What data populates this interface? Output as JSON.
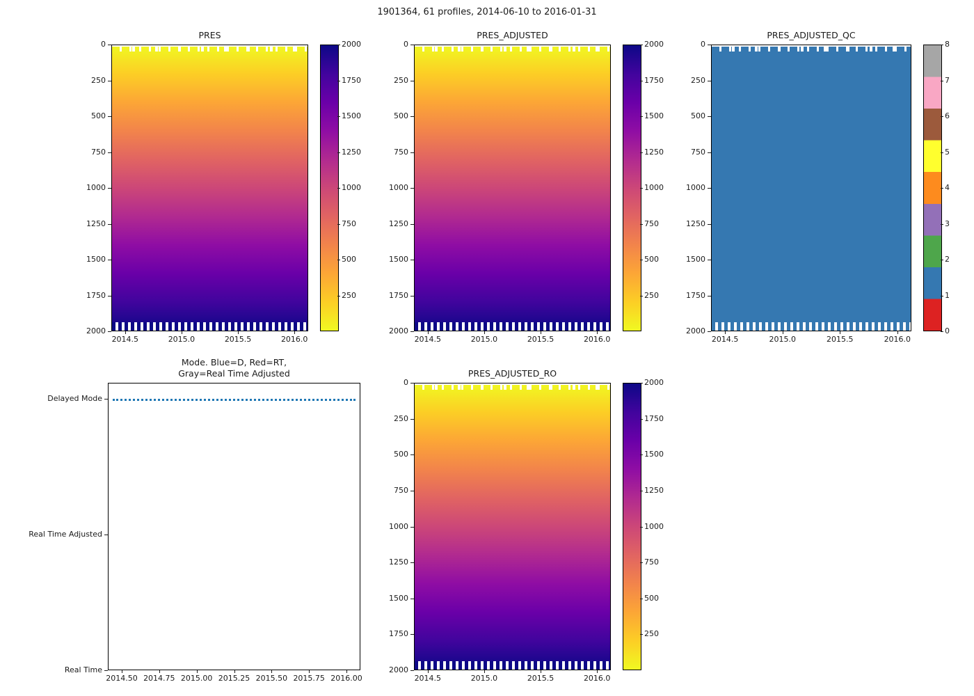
{
  "figure": {
    "title": "1901364, 61 profiles, 2014-06-10 to 2016-01-31",
    "background": "#ffffff"
  },
  "colors": {
    "plasma_colormap_stops": [
      "#0d0887",
      "#41049d",
      "#6a00a8",
      "#8f0da4",
      "#b12a90",
      "#cc4778",
      "#e16462",
      "#f2844b",
      "#fca636",
      "#fcce25",
      "#f0f921"
    ],
    "qc_flag_colors": {
      "0": "#dd2222",
      "1": "#3578b1",
      "2": "#4ea64b",
      "3": "#9370b8",
      "4": "#fd8b1e",
      "5": "#ffff2e",
      "6": "#9c5a3c",
      "7": "#f9a7c4",
      "8": "#a6a6a6"
    },
    "delayed_mode_line": "#1f77b4",
    "deep_field": "#0d0887"
  },
  "charts": {
    "pres": {
      "title": "PRES",
      "yticks": [
        "0",
        "250",
        "500",
        "750",
        "1000",
        "1250",
        "1500",
        "1750",
        "2000"
      ],
      "xticks": [
        "2014.5",
        "2015.0",
        "2015.5",
        "2016.0"
      ],
      "colorbar_ticks": [
        "2000",
        "1750",
        "1500",
        "1250",
        "1000",
        "750",
        "500",
        "250"
      ]
    },
    "pres_adjusted": {
      "title": "PRES_ADJUSTED",
      "yticks": [
        "0",
        "250",
        "500",
        "750",
        "1000",
        "1250",
        "1500",
        "1750",
        "2000"
      ],
      "xticks": [
        "2014.5",
        "2015.0",
        "2015.5",
        "2016.0"
      ],
      "colorbar_ticks": [
        "2000",
        "1750",
        "1500",
        "1250",
        "1000",
        "750",
        "500",
        "250"
      ]
    },
    "pres_adjusted_qc": {
      "title": "PRES_ADJUSTED_QC",
      "yticks": [
        "0",
        "250",
        "500",
        "750",
        "1000",
        "1250",
        "1500",
        "1750",
        "2000"
      ],
      "xticks": [
        "2014.5",
        "2015.0",
        "2015.5",
        "2016.0"
      ],
      "colorbar_ticks": [
        "8",
        "7",
        "6",
        "5",
        "4",
        "3",
        "2",
        "1",
        "0"
      ]
    },
    "mode": {
      "title_line1": "Mode. Blue=D, Red=RT,",
      "title_line2": "Gray=Real Time Adjusted",
      "ycats": [
        "Delayed Mode",
        "Real Time Adjusted",
        "Real Time"
      ],
      "xticks": [
        "2014.50",
        "2014.75",
        "2015.00",
        "2015.25",
        "2015.50",
        "2015.75",
        "2016.00"
      ]
    },
    "pres_adjusted_ro": {
      "title": "PRES_ADJUSTED_RO",
      "yticks": [
        "0",
        "250",
        "500",
        "750",
        "1000",
        "1250",
        "1500",
        "1750",
        "2000"
      ],
      "xticks": [
        "2014.5",
        "2015.0",
        "2015.5",
        "2016.0"
      ],
      "colorbar_ticks": [
        "2000",
        "1750",
        "1500",
        "1250",
        "1000",
        "750",
        "500",
        "250"
      ]
    }
  },
  "chart_data": [
    {
      "type": "heatmap",
      "title": "PRES",
      "x": {
        "range": [
          2014.37,
          2016.12
        ],
        "ticks": [
          2014.5,
          2015.0,
          2015.5,
          2016.0
        ]
      },
      "y": {
        "range": [
          0,
          2000
        ],
        "inverted": true,
        "ticks": [
          0,
          250,
          500,
          750,
          1000,
          1250,
          1500,
          1750,
          2000
        ]
      },
      "value": {
        "min": 0,
        "max": 2000,
        "colormap": "plasma",
        "colorbar_ticks": [
          250,
          500,
          750,
          1000,
          1250,
          1500,
          1750,
          2000
        ]
      },
      "representative_profile": {
        "depth": [
          0,
          250,
          500,
          750,
          1000,
          1250,
          1500,
          1750,
          2000
        ],
        "value": [
          0,
          250,
          500,
          750,
          1000,
          1250,
          1500,
          1750,
          2000
        ]
      },
      "field_description": "61 profiles from 2014-06-10 to 2016-01-31; pressure equals depth, rising smoothly from ~0 dbar (yellow) at the surface to ~2000 dbar (dark navy) at the bottom; shallowest measured level varies slightly per profile and deepest levels near 2000 dbar alternate between profiles (comb pattern)"
    },
    {
      "type": "heatmap",
      "title": "PRES_ADJUSTED",
      "x": {
        "range": [
          2014.37,
          2016.12
        ],
        "ticks": [
          2014.5,
          2015.0,
          2015.5,
          2016.0
        ]
      },
      "y": {
        "range": [
          0,
          2000
        ],
        "inverted": true,
        "ticks": [
          0,
          250,
          500,
          750,
          1000,
          1250,
          1500,
          1750,
          2000
        ]
      },
      "value": {
        "min": 0,
        "max": 2000,
        "colormap": "plasma",
        "colorbar_ticks": [
          250,
          500,
          750,
          1000,
          1250,
          1500,
          1750,
          2000
        ]
      },
      "representative_profile": {
        "depth": [
          0,
          250,
          500,
          750,
          1000,
          1250,
          1500,
          1750,
          2000
        ],
        "value": [
          0,
          250,
          500,
          750,
          1000,
          1250,
          1500,
          1750,
          2000
        ]
      },
      "field_description": "identical appearance to PRES: adjusted pressure increases linearly with depth from ~0 to ~2000 dbar across all 61 profiles"
    },
    {
      "type": "heatmap",
      "title": "PRES_ADJUSTED_QC",
      "x": {
        "range": [
          2014.37,
          2016.12
        ],
        "ticks": [
          2014.5,
          2015.0,
          2015.5,
          2016.0
        ]
      },
      "y": {
        "range": [
          0,
          2000
        ],
        "inverted": true,
        "ticks": [
          0,
          250,
          500,
          750,
          1000,
          1250,
          1500,
          1750,
          2000
        ]
      },
      "value": {
        "min": 0,
        "max": 8,
        "type": "discrete-flags",
        "constant_value": 1,
        "colorbar_ticks": [
          0,
          1,
          2,
          3,
          4,
          5,
          6,
          7,
          8
        ]
      },
      "flag_colors": {
        "0": "#dd2222",
        "1": "#3578b1",
        "2": "#4ea64b",
        "3": "#9370b8",
        "4": "#fd8b1e",
        "5": "#ffff2e",
        "6": "#9c5a3c",
        "7": "#f9a7c4",
        "8": "#a6a6a6"
      },
      "field_description": "QC flag is 1 (blue, good data) at every depth of every profile; bottom comb pattern where profiles end near 2000 dbar"
    },
    {
      "type": "line",
      "title": "Mode. Blue=D, Red=RT, Gray=Real Time Adjusted",
      "x": {
        "range": [
          2014.45,
          2016.05
        ],
        "ticks": [
          2014.5,
          2014.75,
          2015.0,
          2015.25,
          2015.5,
          2015.75,
          2016.0
        ]
      },
      "y": {
        "categories": [
          "Real Time",
          "Real Time Adjusted",
          "Delayed Mode"
        ]
      },
      "series": [
        {
          "name": "mode",
          "color": "#1f77b4",
          "style": "dotted",
          "constant_y": "Delayed Mode",
          "x_span": [
            2014.45,
            2016.05
          ],
          "description": "all 61 profiles are Delayed Mode for the whole record"
        }
      ]
    },
    {
      "type": "heatmap",
      "title": "PRES_ADJUSTED_RO",
      "x": {
        "range": [
          2014.37,
          2016.12
        ],
        "ticks": [
          2014.5,
          2015.0,
          2015.5,
          2016.0
        ]
      },
      "y": {
        "range": [
          0,
          2000
        ],
        "inverted": true,
        "ticks": [
          0,
          250,
          500,
          750,
          1000,
          1250,
          1500,
          1750,
          2000
        ]
      },
      "value": {
        "min": 0,
        "max": 2000,
        "colormap": "plasma",
        "colorbar_ticks": [
          250,
          500,
          750,
          1000,
          1250,
          1500,
          1750,
          2000
        ]
      },
      "representative_profile": {
        "depth": [
          0,
          250,
          500,
          750,
          1000,
          1250,
          1500,
          1750,
          2000
        ],
        "value": [
          0,
          250,
          500,
          750,
          1000,
          1250,
          1500,
          1750,
          2000
        ]
      },
      "field_description": "identical appearance to PRES: pressure increases linearly with depth from ~0 to ~2000 dbar across all 61 profiles"
    }
  ]
}
